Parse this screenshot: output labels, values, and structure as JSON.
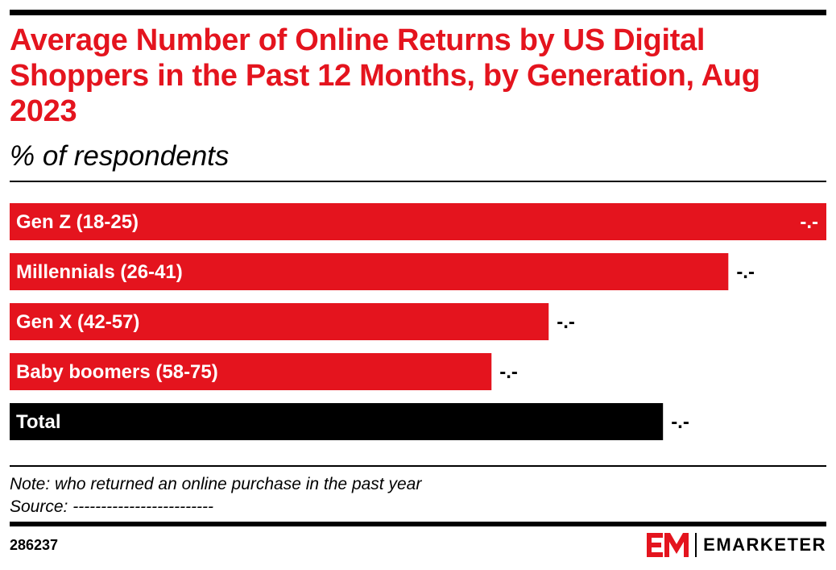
{
  "header": {
    "title": "Average Number of Online Returns by US Digital Shoppers in the Past 12 Months, by Generation, Aug 2023",
    "subtitle": "% of respondents"
  },
  "footer": {
    "note": "Note: who returned an online purchase in the past year",
    "source": "Source: -------------------------",
    "chart_id": "286237",
    "brand": "EMARKETER"
  },
  "colors": {
    "accent": "#e4141e",
    "total": "#000000",
    "label_on_bar": "#ffffff"
  },
  "chart_data": {
    "type": "bar",
    "orientation": "horizontal",
    "title": "Average Number of Online Returns by US Digital Shoppers in the Past 12 Months, by Generation, Aug 2023",
    "subtitle": "% of respondents",
    "categories": [
      "Gen Z (18-25)",
      "Millennials (26-41)",
      "Gen X (42-57)",
      "Baby boomers (58-75)",
      "Total"
    ],
    "values": [
      100,
      88,
      66,
      59,
      80
    ],
    "value_labels": [
      "-.-",
      "-.-",
      "-.-",
      "-.-",
      "-.-"
    ],
    "xlim": [
      0,
      100
    ],
    "grid": false,
    "legend": "none"
  }
}
